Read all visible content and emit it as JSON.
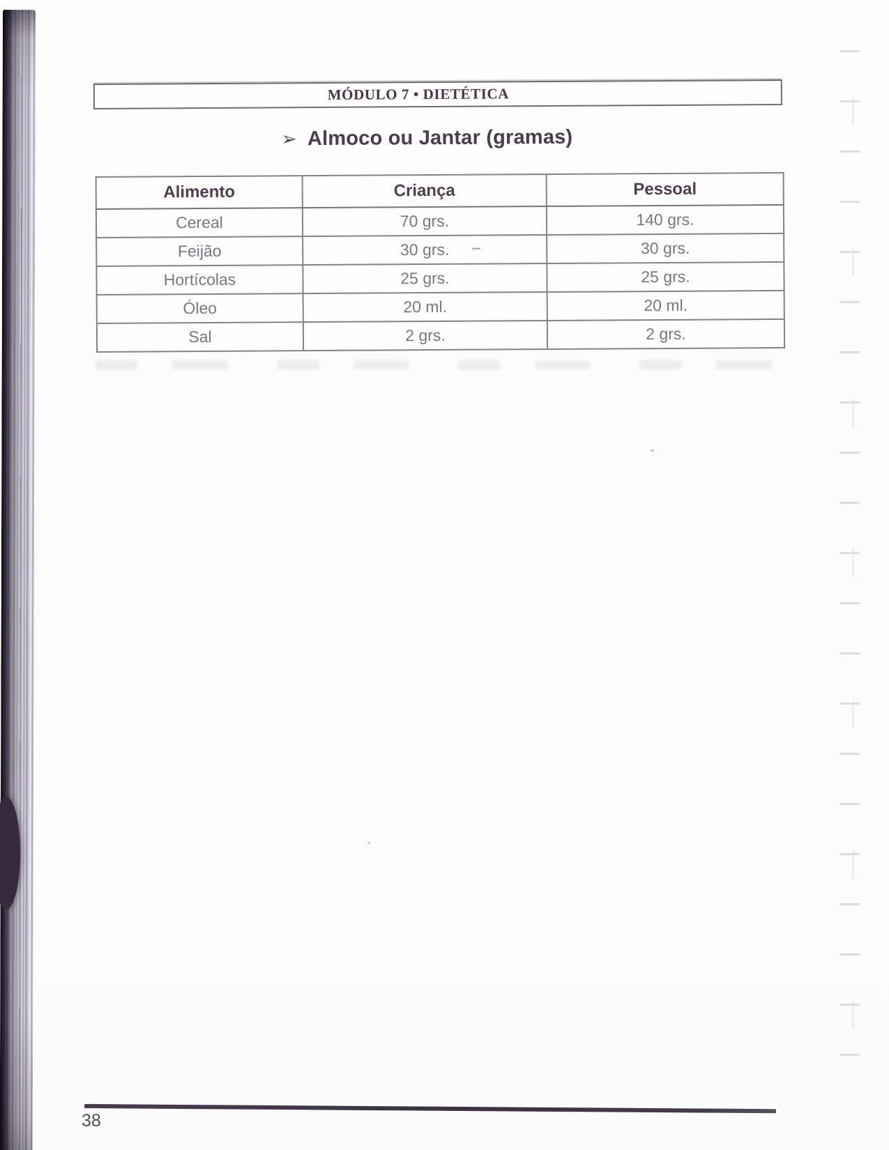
{
  "page": {
    "module_header": "MÓDULO 7 • DIETÉTICA",
    "section_bullet": "➢",
    "section_title": "Almoco ou Jantar (gramas)",
    "page_number": "38",
    "stray_mark": "~"
  },
  "table": {
    "headers": [
      "Alimento",
      "Criança",
      "Pessoal"
    ],
    "rows": [
      [
        "Cereal",
        "70 grs.",
        "140 grs."
      ],
      [
        "Feijão",
        "30 grs.",
        "30 grs."
      ],
      [
        "Hortícolas",
        "25 grs.",
        "25 grs."
      ],
      [
        "Óleo",
        "20 ml.",
        "20 ml."
      ],
      [
        "Sal",
        "2 grs.",
        "2 grs."
      ]
    ]
  },
  "colors": {
    "ink": "#4a3544",
    "title_ink": "#4b3c4c",
    "table_header_ink": "#4f3e4d",
    "cell_text": "#7a7680",
    "table_border": "#84828a",
    "footer_rule": "#3f3545",
    "spine_dark": "#16121f"
  }
}
